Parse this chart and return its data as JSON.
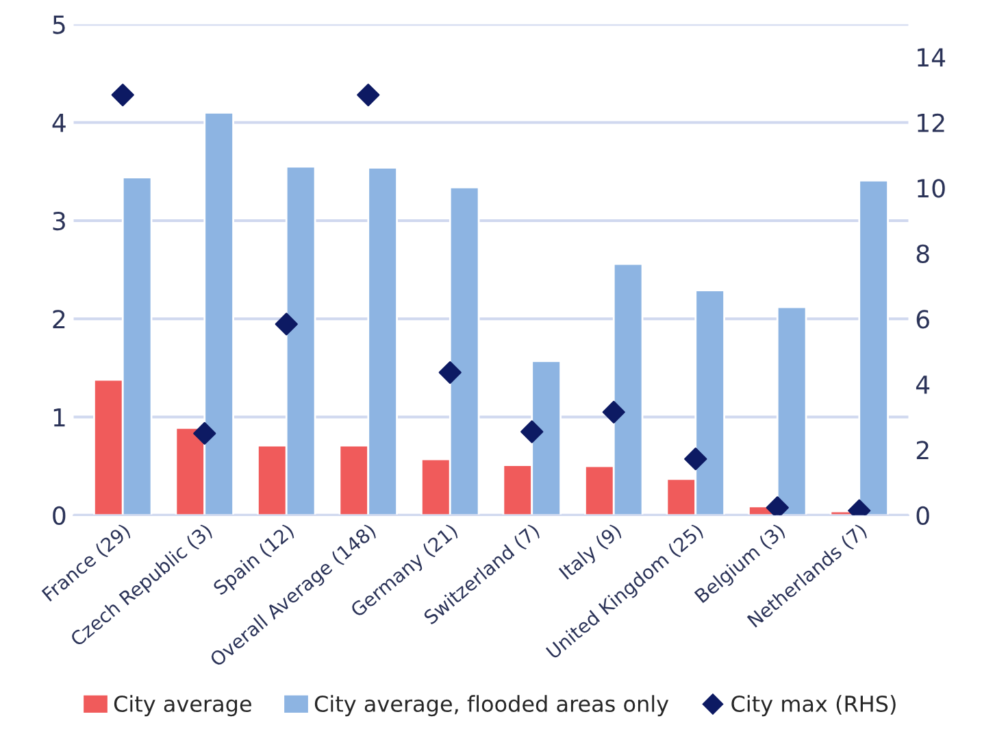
{
  "chart_data": {
    "type": "bar",
    "categories": [
      "France (29)",
      "Czech Republic (3)",
      "Spain (12)",
      "Overall Average (148)",
      "Germany (21)",
      "Switzerland (7)",
      "Italy (9)",
      "United Kingdom (25)",
      "Belgium (3)",
      "Netherlands (7)"
    ],
    "series": [
      {
        "name": "City average",
        "color": "#f05b5b",
        "values": [
          1.38,
          0.89,
          0.71,
          0.71,
          0.57,
          0.51,
          0.5,
          0.37,
          0.09,
          0.04
        ]
      },
      {
        "name": "City average, flooded areas only",
        "color": "#8db4e2",
        "values": [
          3.44,
          4.1,
          3.55,
          3.54,
          3.34,
          1.57,
          2.56,
          2.29,
          2.12,
          3.41
        ]
      },
      {
        "name": "City max (RHS)",
        "type": "scatter",
        "axis": "y2",
        "color": "#0d1a63",
        "marker": "diamond",
        "values": [
          12.84,
          2.5,
          5.84,
          12.84,
          4.36,
          2.55,
          3.15,
          1.72,
          0.23,
          0.14
        ]
      }
    ],
    "ylim": [
      0,
      5
    ],
    "yticks": [
      0,
      1,
      2,
      3,
      4,
      5
    ],
    "y2lim": [
      0,
      15
    ],
    "y2ticks": [
      0,
      2,
      4,
      6,
      8,
      10,
      12,
      14
    ],
    "grid": "y",
    "legend": "bottom"
  }
}
